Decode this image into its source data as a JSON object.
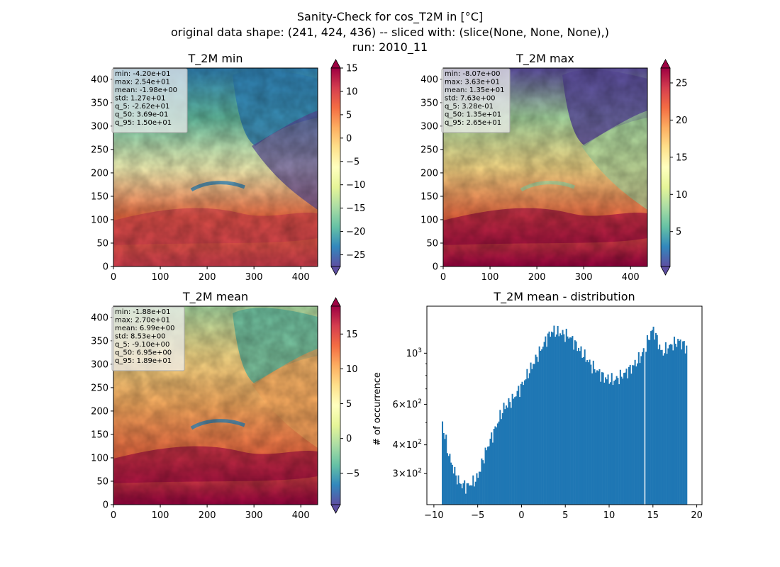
{
  "figure": {
    "title_lines": [
      "Sanity-Check for cos_T2M in [°C]",
      "original data shape: (241, 424, 436) -- sliced with: (slice(None, None, None),)",
      "run: 2010_11"
    ]
  },
  "chart_data": [
    {
      "type": "heatmap",
      "title": "T_2M min",
      "xlim": [
        0,
        436
      ],
      "ylim": [
        0,
        424
      ],
      "xticks": [
        "0",
        "100",
        "200",
        "300",
        "400"
      ],
      "yticks": [
        "0",
        "50",
        "100",
        "150",
        "200",
        "250",
        "300",
        "350",
        "400"
      ],
      "colormap": "Spectral_r",
      "colorbar": {
        "range": [
          -27.5,
          15
        ],
        "ticks": [
          "15",
          "10",
          "5",
          "0",
          "−5",
          "−10",
          "−15",
          "−20",
          "−25"
        ]
      },
      "stats": [
        "min: -4.20e+01",
        "max: 2.54e+01",
        "mean: -1.98e+00",
        "std: 1.27e+01",
        "q_5: -2.62e+01",
        "q_50: 3.69e-01",
        "q_95: 1.50e+01"
      ]
    },
    {
      "type": "heatmap",
      "title": "T_2M max",
      "xlim": [
        0,
        436
      ],
      "ylim": [
        0,
        424
      ],
      "xticks": [
        "0",
        "100",
        "200",
        "300",
        "400"
      ],
      "yticks": [
        "0",
        "50",
        "100",
        "150",
        "200",
        "250",
        "300",
        "350",
        "400"
      ],
      "colormap": "Spectral_r",
      "colorbar": {
        "range": [
          0.3,
          27
        ],
        "ticks": [
          "25",
          "20",
          "15",
          "10",
          "5"
        ]
      },
      "stats": [
        "min: -8.07e+00",
        "max: 3.63e+01",
        "mean: 1.35e+01",
        "std: 7.63e+00",
        "q_5: 3.28e-01",
        "q_50: 1.35e+01",
        "q_95: 2.65e+01"
      ]
    },
    {
      "type": "heatmap",
      "title": "T_2M mean",
      "xlim": [
        0,
        436
      ],
      "ylim": [
        0,
        424
      ],
      "xticks": [
        "0",
        "100",
        "200",
        "300",
        "400"
      ],
      "yticks": [
        "0",
        "50",
        "100",
        "150",
        "200",
        "250",
        "300",
        "350",
        "400"
      ],
      "colormap": "Spectral_r",
      "colorbar": {
        "range": [
          -9.5,
          19
        ],
        "ticks": [
          "15",
          "10",
          "5",
          "0",
          "−5"
        ]
      },
      "stats": [
        "min: -1.88e+01",
        "max: 2.70e+01",
        "mean: 6.99e+00",
        "std: 8.53e+00",
        "q_5: -9.10e+00",
        "q_50: 6.95e+00",
        "q_95: 1.89e+01"
      ]
    },
    {
      "type": "bar",
      "title": "T_2M mean - distribution",
      "ylabel": "# of occurrence",
      "yscale": "log",
      "xlim": [
        -10.8,
        20.6
      ],
      "ylim": [
        220,
        1600
      ],
      "xticks": [
        "−10",
        "−5",
        "0",
        "5",
        "10",
        "15",
        "20"
      ],
      "yticks": [
        "10^3",
        "6×10^2",
        "4×10^2",
        "3×10^2"
      ],
      "bar_color": "#1f77b4",
      "bins": {
        "start": -9.1,
        "end": 18.9,
        "anchors_x": [
          -9.1,
          -8.9,
          -8.3,
          -7.6,
          -7.0,
          -6.2,
          -5.5,
          -5.0,
          -4.0,
          -3.0,
          -2.0,
          -1.0,
          0.0,
          1.0,
          2.0,
          3.0,
          3.5,
          4.5,
          5.5,
          6.5,
          8.0,
          9.5,
          10.5,
          11.5,
          12.5,
          13.5,
          14.2,
          15.0,
          16.0,
          17.0,
          18.0,
          18.9
        ],
        "anchors_y": [
          530,
          460,
          360,
          300,
          270,
          265,
          275,
          290,
          380,
          470,
          580,
          630,
          720,
          850,
          1000,
          1180,
          1250,
          1220,
          1180,
          1050,
          880,
          780,
          760,
          800,
          860,
          950,
          1080,
          1280,
          1000,
          1080,
          1130,
          1050
        ]
      }
    }
  ]
}
